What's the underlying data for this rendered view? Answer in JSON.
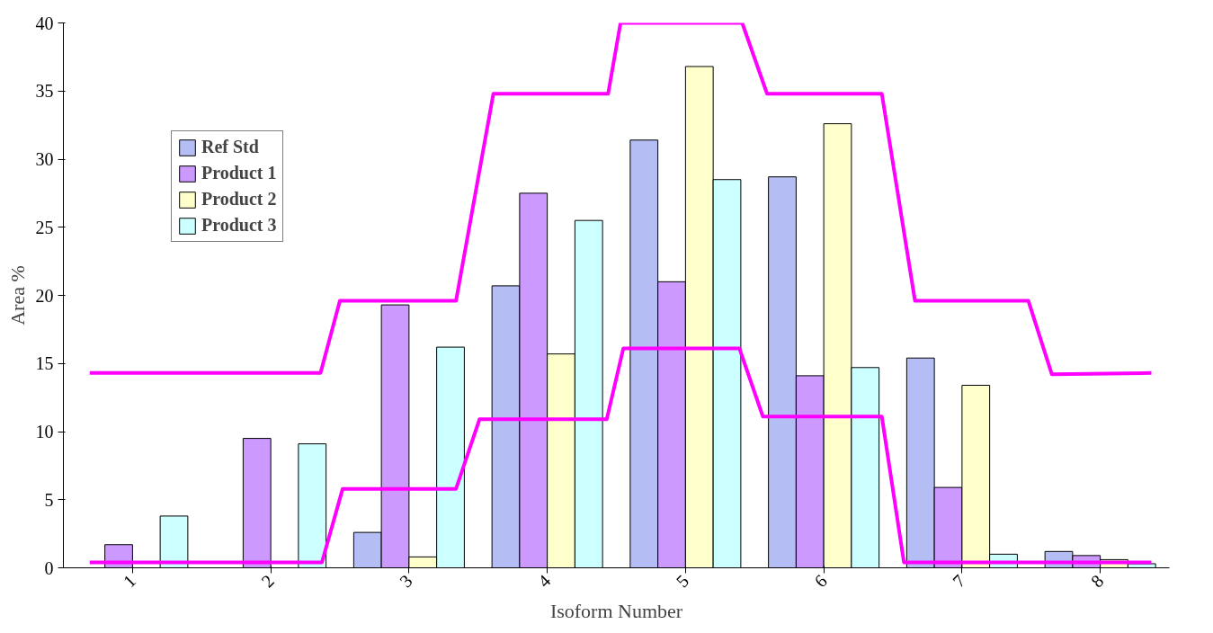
{
  "chart_data": {
    "type": "bar",
    "xlabel": "Isoform Number",
    "ylabel": "Area %",
    "x": [
      1,
      2,
      3,
      4,
      5,
      6,
      7,
      8
    ],
    "xlim": [
      0.5,
      8.5
    ],
    "xticks": [
      1,
      2,
      3,
      4,
      5,
      6,
      7,
      8
    ],
    "ylim": [
      0,
      40
    ],
    "yticks": [
      0,
      5,
      10,
      15,
      20,
      25,
      30,
      35,
      40
    ],
    "grid": false,
    "legend": "top left",
    "series": [
      {
        "name": "Ref Std",
        "color": "#b4bef4",
        "values": [
          null,
          null,
          2.6,
          20.7,
          31.4,
          28.7,
          15.4,
          1.2
        ]
      },
      {
        "name": "Product 1",
        "color": "#cc99ff",
        "values": [
          1.7,
          9.5,
          19.3,
          27.5,
          21.0,
          14.1,
          5.9,
          0.9
        ]
      },
      {
        "name": "Product 2",
        "color": "#ffffcc",
        "values": [
          null,
          null,
          0.8,
          15.7,
          36.8,
          32.6,
          13.4,
          0.6
        ]
      },
      {
        "name": "Product 3",
        "color": "#ccffff",
        "values": [
          3.8,
          9.1,
          16.2,
          25.5,
          28.5,
          14.7,
          1.0,
          0.3
        ]
      },
      {
        "type": "line",
        "color": "#ff00ff",
        "x": [
          0.69,
          2.36,
          2.5,
          3.34,
          3.61,
          4.44,
          4.53,
          5.41,
          5.59,
          6.42,
          6.66,
          7.48,
          7.65,
          8.37
        ],
        "values": [
          14.3,
          14.3,
          19.6,
          19.6,
          34.8,
          34.8,
          40,
          40,
          34.8,
          34.8,
          19.6,
          19.6,
          14.2,
          14.3
        ]
      },
      {
        "type": "line",
        "color": "#ff00ff",
        "x": [
          0.69,
          2.37,
          2.52,
          3.34,
          3.51,
          4.43,
          4.55,
          5.39,
          5.56,
          6.42,
          6.58,
          8.37
        ],
        "values": [
          0.4,
          0.4,
          5.8,
          5.8,
          10.9,
          10.9,
          16.1,
          16.1,
          11.1,
          11.1,
          0.4,
          0.4
        ]
      }
    ]
  }
}
